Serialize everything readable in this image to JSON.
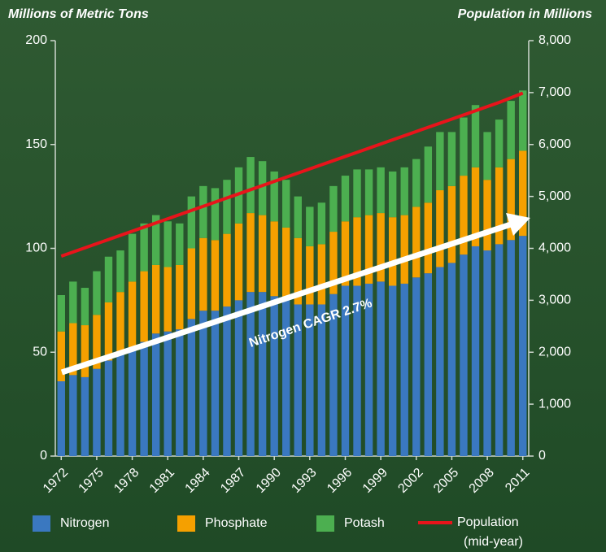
{
  "chart_data": {
    "type": "bar",
    "y_label": "Millions of Metric Tons",
    "y2_label": "Population in Millions",
    "annotation": "Nitrogen CAGR 2.7%",
    "legend_note": "(mid-year)",
    "categories": [
      "1972",
      null,
      null,
      "1975",
      null,
      null,
      "1978",
      null,
      null,
      "1981",
      null,
      null,
      "1984",
      null,
      null,
      "1987",
      null,
      null,
      "1990",
      null,
      null,
      "1993",
      null,
      null,
      "1996",
      null,
      null,
      "1999",
      null,
      null,
      "2002",
      null,
      null,
      "2005",
      null,
      null,
      "2008",
      null,
      null,
      "2011"
    ],
    "series": [
      {
        "name": "Nitrogen",
        "color": "#3a78c0",
        "values": [
          36,
          39,
          38,
          42,
          46,
          49,
          52,
          55,
          59,
          60,
          61,
          66,
          70,
          70,
          72,
          75,
          79,
          79,
          77,
          75,
          73,
          73,
          73,
          78,
          82,
          82,
          83,
          84,
          82,
          83,
          86,
          88,
          91,
          93,
          97,
          101,
          99,
          102,
          104,
          106
        ]
      },
      {
        "name": "Phosphate",
        "color": "#f5a000",
        "values": [
          24,
          25,
          25,
          26,
          28,
          30,
          32,
          34,
          33,
          31,
          31,
          34,
          35,
          34,
          35,
          37,
          38,
          37,
          36,
          35,
          32,
          28,
          29,
          30,
          31,
          33,
          33,
          33,
          33,
          33,
          34,
          34,
          37,
          37,
          38,
          38,
          34,
          37,
          39,
          41
        ]
      },
      {
        "name": "Potash",
        "color": "#4caf50",
        "values": [
          17.5,
          20,
          18,
          21,
          22,
          20,
          23,
          23,
          24,
          22,
          20,
          25,
          25,
          25,
          26,
          27,
          27,
          26,
          24,
          23,
          20,
          19,
          20,
          22,
          22,
          23,
          22,
          22,
          22,
          23,
          23,
          27,
          28,
          26,
          28,
          30,
          23,
          23,
          28,
          29
        ]
      },
      {
        "name": "Population",
        "color": "#e8141b",
        "axis": "y2",
        "values": [
          3850,
          3930,
          4010,
          4090,
          4170,
          4250,
          4330,
          4410,
          4490,
          4570,
          4650,
          4730,
          4810,
          4890,
          4970,
          5050,
          5130,
          5210,
          5290,
          5370,
          5450,
          5530,
          5610,
          5690,
          5770,
          5850,
          5930,
          6010,
          6090,
          6170,
          6250,
          6330,
          6410,
          6490,
          6570,
          6650,
          6730,
          6810,
          6900,
          6990
        ]
      }
    ],
    "ylim": [
      0,
      200
    ],
    "yticks": [
      0,
      50,
      100,
      150,
      200
    ],
    "y2lim": [
      0,
      8000
    ],
    "y2ticks": [
      0,
      {
        "value": 1000,
        "label": "1,000"
      },
      {
        "value": 2000,
        "label": "2,000"
      },
      {
        "value": 3000,
        "label": "3,000"
      },
      {
        "value": 4000,
        "label": "4,000"
      },
      {
        "value": 5000,
        "label": "5,000"
      },
      {
        "value": 6000,
        "label": "6,000"
      },
      {
        "value": 7000,
        "label": "7,000"
      },
      {
        "value": 8000,
        "label": "8,000"
      }
    ]
  }
}
